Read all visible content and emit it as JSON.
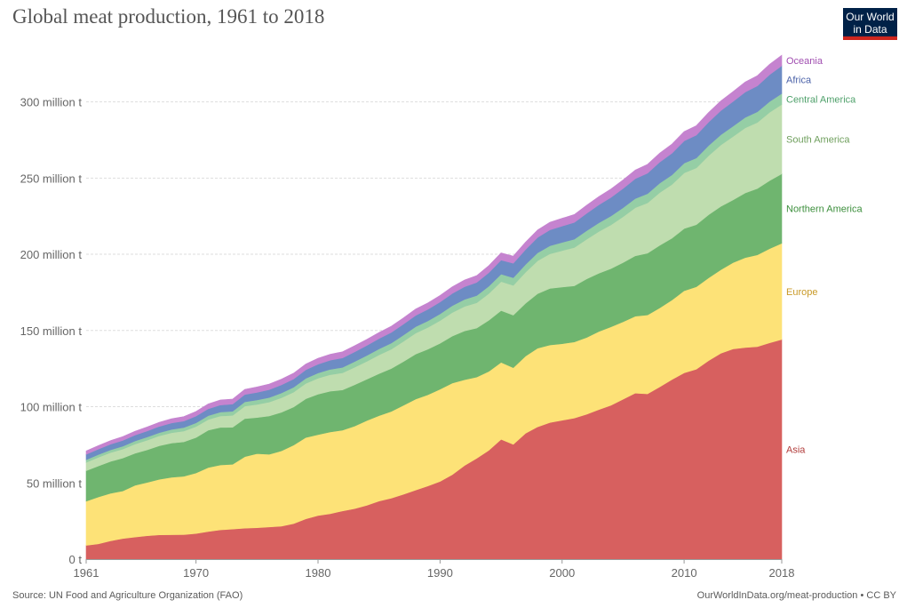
{
  "header": {
    "title": "Global meat production, 1961 to 2018",
    "logo_line1": "Our World",
    "logo_line2": "in Data"
  },
  "footer": {
    "source": "Source: UN Food and Agriculture Organization (FAO)",
    "url": "OurWorldInData.org/meat-production • CC BY"
  },
  "chart_data": {
    "type": "area",
    "stacked": true,
    "title": "Global meat production, 1961 to 2018",
    "xlabel": "",
    "ylabel": "",
    "x": [
      1961,
      1962,
      1963,
      1964,
      1965,
      1966,
      1967,
      1968,
      1969,
      1970,
      1971,
      1972,
      1973,
      1974,
      1975,
      1976,
      1977,
      1978,
      1979,
      1980,
      1981,
      1982,
      1983,
      1984,
      1985,
      1986,
      1987,
      1988,
      1989,
      1990,
      1991,
      1992,
      1993,
      1994,
      1995,
      1996,
      1997,
      1998,
      1999,
      2000,
      2001,
      2002,
      2003,
      2004,
      2005,
      2006,
      2007,
      2008,
      2009,
      2010,
      2011,
      2012,
      2013,
      2014,
      2015,
      2016,
      2017,
      2018
    ],
    "xlim": [
      1961,
      2018
    ],
    "ylim": [
      0,
      340
    ],
    "x_ticks": [
      1961,
      1970,
      1980,
      1990,
      2000,
      2010,
      2018
    ],
    "y_ticks": [
      0,
      50,
      100,
      150,
      200,
      250,
      300
    ],
    "y_tick_labels": [
      "0 t",
      "50 million t",
      "100 million t",
      "150 million t",
      "200 million t",
      "250 million t",
      "300 million t"
    ],
    "grid": true,
    "legend": "right",
    "series": [
      {
        "name": "Asia",
        "color": "#d7605f",
        "label_color": "#b13c3b",
        "values": [
          9,
          10,
          12,
          13.5,
          14.5,
          15.3,
          15.9,
          16.0,
          16.1,
          16.8,
          18.1,
          19.2,
          19.7,
          20.3,
          20.6,
          21.1,
          21.6,
          23.3,
          26.4,
          28.6,
          29.8,
          31.6,
          33.1,
          35.3,
          38.1,
          40.0,
          42.5,
          45.3,
          48.0,
          51.0,
          55.4,
          61.4,
          66.1,
          71.4,
          78.6,
          75.3,
          82.5,
          86.8,
          89.6,
          91.1,
          92.5,
          95.0,
          98.1,
          100.9,
          104.9,
          108.9,
          108.4,
          113.0,
          117.8,
          122.2,
          124.6,
          130.2,
          135.0,
          137.9,
          138.8,
          139.4,
          141.9,
          144.1
        ]
      },
      {
        "name": "Europe",
        "color": "#fde277",
        "label_color": "#c99a28",
        "values": [
          29,
          30.8,
          31.2,
          31.2,
          33.9,
          35.0,
          36.5,
          37.7,
          38.2,
          39.7,
          42.0,
          42.6,
          42.5,
          46.9,
          48.6,
          47.7,
          49.4,
          51.5,
          53.4,
          53.1,
          53.6,
          53.0,
          54.2,
          55.6,
          56.0,
          56.9,
          58.4,
          59.7,
          59.8,
          60.5,
          60.1,
          56.3,
          53.3,
          51.8,
          50.5,
          50.3,
          50.7,
          51.6,
          50.9,
          50.2,
          50.0,
          50.4,
          51.2,
          51.5,
          50.8,
          50.5,
          51.8,
          51.8,
          52.2,
          53.9,
          54.1,
          54.3,
          54.8,
          56.6,
          59.0,
          60.2,
          61.8,
          63.1
        ]
      },
      {
        "name": "Northern America",
        "color": "#6fb56f",
        "label_color": "#3d8f3d",
        "values": [
          20,
          20.3,
          20.9,
          21.6,
          21.0,
          21.4,
          22.0,
          22.4,
          22.6,
          23.3,
          24.5,
          24.6,
          24.3,
          25.0,
          23.7,
          25.1,
          25.3,
          25.0,
          25.4,
          26.5,
          26.8,
          26.4,
          27.1,
          27.1,
          27.6,
          28.1,
          28.7,
          29.5,
          29.9,
          30.1,
          30.8,
          32.0,
          32.2,
          33.5,
          34.0,
          34.5,
          34.6,
          35.8,
          37.1,
          37.2,
          36.8,
          38.4,
          38.2,
          38.2,
          38.9,
          39.6,
          40.5,
          41.1,
          40.5,
          40.8,
          40.7,
          41.4,
          41.6,
          41.1,
          42.4,
          43.5,
          44.6,
          45.6
        ]
      },
      {
        "name": "South America",
        "color": "#bfddaf",
        "label_color": "#6f9f5d",
        "values": [
          5.5,
          5.7,
          5.8,
          5.9,
          6.1,
          6.3,
          6.5,
          6.8,
          7.1,
          7.2,
          7.0,
          7.5,
          7.8,
          8.2,
          8.6,
          9.1,
          9.6,
          9.8,
          10.1,
          10.5,
          10.8,
          11.2,
          11.5,
          11.8,
          12.3,
          12.7,
          13.3,
          13.8,
          14.3,
          14.9,
          15.5,
          16.1,
          16.6,
          17.6,
          19.0,
          19.5,
          20.4,
          21.6,
          22.7,
          23.9,
          25.1,
          26.0,
          27.4,
          28.7,
          30.1,
          31.6,
          33.0,
          34.6,
          35.3,
          36.5,
          37.3,
          38.8,
          40.3,
          41.6,
          42.7,
          43.4,
          44.8,
          45.5
        ]
      },
      {
        "name": "Central America",
        "color": "#95cea5",
        "label_color": "#4ea06a",
        "values": [
          1.7,
          1.8,
          1.8,
          1.9,
          2.0,
          2.1,
          2.1,
          2.2,
          2.3,
          2.4,
          2.5,
          2.6,
          2.7,
          2.8,
          2.9,
          3.0,
          3.1,
          3.2,
          3.3,
          3.4,
          3.5,
          3.6,
          3.7,
          3.8,
          3.9,
          4.0,
          4.1,
          4.2,
          4.3,
          4.4,
          4.5,
          4.6,
          4.7,
          4.8,
          4.9,
          5.0,
          5.1,
          5.2,
          5.3,
          5.4,
          5.5,
          5.6,
          5.7,
          5.8,
          5.9,
          6.0,
          6.1,
          6.2,
          6.3,
          6.4,
          6.5,
          6.6,
          6.7,
          6.8,
          6.9,
          7.0,
          7.1,
          7.2
        ]
      },
      {
        "name": "Africa",
        "color": "#6d8cc4",
        "label_color": "#4b62a8",
        "values": [
          3.5,
          3.6,
          3.7,
          3.8,
          3.9,
          4.0,
          4.1,
          4.2,
          4.3,
          4.4,
          4.5,
          4.6,
          4.7,
          4.8,
          5.0,
          5.2,
          5.3,
          5.4,
          5.6,
          5.8,
          6.0,
          6.2,
          6.4,
          6.6,
          6.8,
          7.0,
          7.2,
          7.4,
          7.6,
          7.8,
          8.0,
          8.3,
          8.6,
          8.9,
          9.2,
          9.5,
          9.8,
          10.1,
          10.4,
          10.7,
          11.0,
          11.4,
          11.8,
          12.2,
          12.6,
          13.0,
          13.4,
          13.8,
          14.2,
          14.6,
          15.0,
          15.4,
          15.8,
          16.2,
          16.6,
          17.0,
          17.6,
          18.2
        ]
      },
      {
        "name": "Oceania",
        "color": "#c583cf",
        "label_color": "#a04eb0",
        "values": [
          2.3,
          2.3,
          2.4,
          2.5,
          2.5,
          2.6,
          2.7,
          2.8,
          2.9,
          3.1,
          3.2,
          3.3,
          3.3,
          3.4,
          3.6,
          3.7,
          3.8,
          3.8,
          3.8,
          3.9,
          3.9,
          4.0,
          4.0,
          4.0,
          4.0,
          4.1,
          4.1,
          4.2,
          4.2,
          4.3,
          4.4,
          4.4,
          4.5,
          4.6,
          4.7,
          4.7,
          4.8,
          4.9,
          5.0,
          5.1,
          5.2,
          5.3,
          5.4,
          5.5,
          5.6,
          5.7,
          5.8,
          5.9,
          6.0,
          6.1,
          6.2,
          6.3,
          6.4,
          6.5,
          6.6,
          6.7,
          6.8,
          6.9
        ]
      }
    ]
  }
}
